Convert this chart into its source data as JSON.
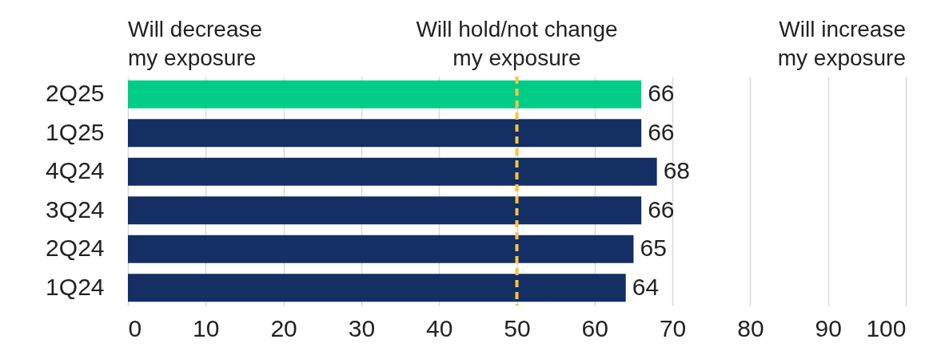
{
  "chart_data": {
    "type": "bar",
    "orientation": "horizontal",
    "categories": [
      "2Q25",
      "1Q25",
      "4Q24",
      "3Q24",
      "2Q24",
      "1Q24"
    ],
    "values": [
      66,
      66,
      68,
      66,
      65,
      64
    ],
    "colors": [
      "#00cc88",
      "#132f63",
      "#132f63",
      "#132f63",
      "#132f63",
      "#132f63"
    ],
    "xlim": [
      0,
      100
    ],
    "xticks": [
      0,
      10,
      20,
      30,
      40,
      50,
      60,
      70,
      80,
      90,
      100
    ],
    "grid": "x",
    "data_labels": true,
    "ref_lines": [
      {
        "axis": "x",
        "value": 50,
        "color": "#f9c440",
        "line_style": "dashed"
      }
    ],
    "annotations": [
      "Will decrease\nmy exposure",
      "Will hold/not  change\nmy exposure",
      "Will increase\nmy exposure"
    ]
  }
}
